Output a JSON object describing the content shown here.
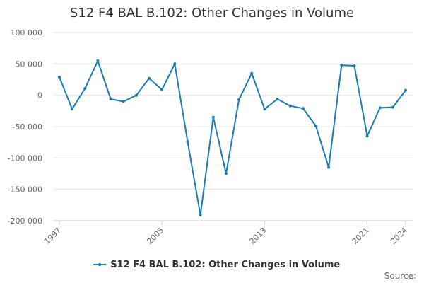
{
  "chart_data": {
    "type": "line",
    "title": "S12 F4 BAL B.102: Other Changes in Volume",
    "xlabel": "",
    "ylabel": "",
    "x": [
      1997,
      1998,
      1999,
      2000,
      2001,
      2002,
      2003,
      2004,
      2005,
      2006,
      2007,
      2008,
      2009,
      2010,
      2011,
      2012,
      2013,
      2014,
      2015,
      2016,
      2017,
      2018,
      2019,
      2020,
      2021,
      2022,
      2023,
      2024
    ],
    "x_tick_labels": [
      "1997",
      "2005",
      "2013",
      "2021",
      "2024"
    ],
    "x_tick_values": [
      1997,
      2005,
      2013,
      2021,
      2024
    ],
    "series": [
      {
        "name": "S12 F4 BAL B.102: Other Changes in Volume",
        "values": [
          29000,
          -22000,
          11000,
          55000,
          -6000,
          -10000,
          0,
          27000,
          9000,
          50000,
          -74000,
          -191000,
          -35000,
          -125000,
          -7000,
          35000,
          -22000,
          -6000,
          -17000,
          -21000,
          -49000,
          -115000,
          48000,
          47000,
          -65000,
          -20000,
          -19000,
          8000
        ],
        "color": "#1f77b4"
      }
    ],
    "ylim": [
      -200000,
      100000
    ],
    "y_ticks": [
      100000,
      50000,
      0,
      -50000,
      -100000,
      -150000,
      -200000
    ],
    "y_tick_labels": [
      "100 000",
      "50 000",
      "0",
      "-50 000",
      "-100 000",
      "-150 000",
      "-200 000"
    ],
    "grid": "horizontal",
    "legend_position": "bottom-center",
    "line_color": "#1b7bb5"
  },
  "source_label": "Source:"
}
